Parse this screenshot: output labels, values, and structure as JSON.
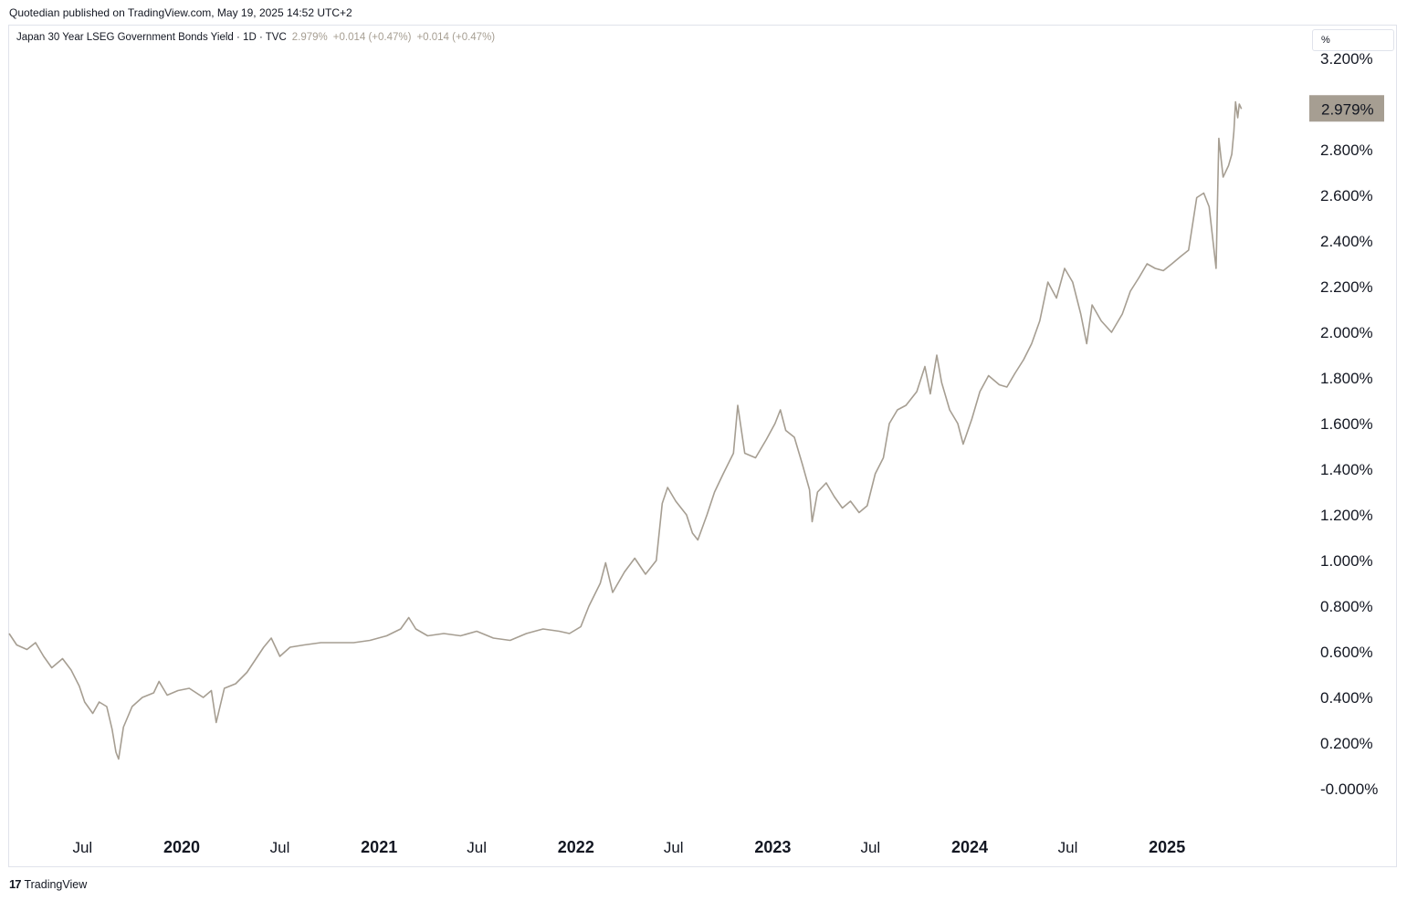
{
  "publisher_line": "Quotedian published on TradingView.com, May 19, 2025 14:52 UTC+2",
  "header": {
    "title": "Japan 30 Year LSEG Government Bonds Yield · 1D · TVC",
    "last": "2.979%",
    "change1": "+0.014 (+0.47%)",
    "change2": "+0.014 (+0.47%)"
  },
  "unit_selector": "%",
  "footer": {
    "logo_glyph": "17",
    "brand": "TradingView"
  },
  "colors": {
    "line": "#a69e92",
    "price_tag_bg": "#a69e92",
    "text": "#131722",
    "border": "#e0e3eb"
  },
  "chart_data": {
    "type": "line",
    "title": "Japan 30 Year LSEG Government Bonds Yield · 1D · TVC",
    "xlabel": "",
    "ylabel": "",
    "ylim": [
      0,
      3.2
    ],
    "y_ticks": [
      "3.200%",
      "2.800%",
      "2.600%",
      "2.400%",
      "2.200%",
      "2.000%",
      "1.800%",
      "1.600%",
      "1.400%",
      "1.200%",
      "1.000%",
      "0.800%",
      "0.600%",
      "0.400%",
      "0.200%",
      "-0.000%"
    ],
    "y_tick_values": [
      3.2,
      2.8,
      2.6,
      2.4,
      2.2,
      2.0,
      1.8,
      1.6,
      1.4,
      1.2,
      1.0,
      0.8,
      0.6,
      0.4,
      0.2,
      0.0
    ],
    "x_ticks": [
      {
        "label": "Jul",
        "date": "2019-07-01",
        "bold": false
      },
      {
        "label": "2020",
        "date": "2020-01-01",
        "bold": true
      },
      {
        "label": "Jul",
        "date": "2020-07-01",
        "bold": false
      },
      {
        "label": "2021",
        "date": "2021-01-01",
        "bold": true
      },
      {
        "label": "Jul",
        "date": "2021-07-01",
        "bold": false
      },
      {
        "label": "2022",
        "date": "2022-01-01",
        "bold": true
      },
      {
        "label": "Jul",
        "date": "2022-07-01",
        "bold": false
      },
      {
        "label": "2023",
        "date": "2023-01-01",
        "bold": true
      },
      {
        "label": "Jul",
        "date": "2023-07-01",
        "bold": false
      },
      {
        "label": "2024",
        "date": "2024-01-01",
        "bold": true
      },
      {
        "label": "Jul",
        "date": "2024-07-01",
        "bold": false
      },
      {
        "label": "2025",
        "date": "2025-01-01",
        "bold": true
      }
    ],
    "x_range": [
      "2019-02-15",
      "2025-09-15"
    ],
    "last_value": 2.979,
    "last_value_label": "2.979%",
    "series": [
      {
        "points": [
          [
            "2019-02-15",
            0.68
          ],
          [
            "2019-03-01",
            0.63
          ],
          [
            "2019-03-20",
            0.61
          ],
          [
            "2019-04-05",
            0.64
          ],
          [
            "2019-04-20",
            0.58
          ],
          [
            "2019-05-05",
            0.53
          ],
          [
            "2019-05-25",
            0.57
          ],
          [
            "2019-06-10",
            0.52
          ],
          [
            "2019-06-25",
            0.45
          ],
          [
            "2019-07-05",
            0.38
          ],
          [
            "2019-07-20",
            0.33
          ],
          [
            "2019-08-01",
            0.38
          ],
          [
            "2019-08-15",
            0.36
          ],
          [
            "2019-08-25",
            0.26
          ],
          [
            "2019-09-01",
            0.16
          ],
          [
            "2019-09-06",
            0.13
          ],
          [
            "2019-09-15",
            0.27
          ],
          [
            "2019-10-01",
            0.36
          ],
          [
            "2019-10-20",
            0.4
          ],
          [
            "2019-11-10",
            0.42
          ],
          [
            "2019-11-20",
            0.47
          ],
          [
            "2019-12-05",
            0.41
          ],
          [
            "2019-12-25",
            0.43
          ],
          [
            "2020-01-15",
            0.44
          ],
          [
            "2020-02-10",
            0.4
          ],
          [
            "2020-02-25",
            0.43
          ],
          [
            "2020-03-05",
            0.29
          ],
          [
            "2020-03-20",
            0.44
          ],
          [
            "2020-04-10",
            0.46
          ],
          [
            "2020-05-01",
            0.51
          ],
          [
            "2020-06-01",
            0.62
          ],
          [
            "2020-06-15",
            0.66
          ],
          [
            "2020-07-01",
            0.58
          ],
          [
            "2020-07-20",
            0.62
          ],
          [
            "2020-08-15",
            0.63
          ],
          [
            "2020-09-15",
            0.64
          ],
          [
            "2020-10-15",
            0.64
          ],
          [
            "2020-11-15",
            0.64
          ],
          [
            "2020-12-15",
            0.65
          ],
          [
            "2021-01-15",
            0.67
          ],
          [
            "2021-02-10",
            0.7
          ],
          [
            "2021-02-25",
            0.75
          ],
          [
            "2021-03-10",
            0.7
          ],
          [
            "2021-04-01",
            0.67
          ],
          [
            "2021-05-01",
            0.68
          ],
          [
            "2021-06-01",
            0.67
          ],
          [
            "2021-07-01",
            0.69
          ],
          [
            "2021-08-01",
            0.66
          ],
          [
            "2021-09-01",
            0.65
          ],
          [
            "2021-10-01",
            0.68
          ],
          [
            "2021-11-01",
            0.7
          ],
          [
            "2021-12-01",
            0.69
          ],
          [
            "2021-12-20",
            0.68
          ],
          [
            "2022-01-10",
            0.71
          ],
          [
            "2022-01-25",
            0.8
          ],
          [
            "2022-02-15",
            0.9
          ],
          [
            "2022-02-25",
            0.99
          ],
          [
            "2022-03-10",
            0.86
          ],
          [
            "2022-04-01",
            0.95
          ],
          [
            "2022-04-20",
            1.01
          ],
          [
            "2022-05-10",
            0.94
          ],
          [
            "2022-05-30",
            1.0
          ],
          [
            "2022-06-10",
            1.25
          ],
          [
            "2022-06-20",
            1.32
          ],
          [
            "2022-07-05",
            1.26
          ],
          [
            "2022-07-25",
            1.2
          ],
          [
            "2022-08-05",
            1.12
          ],
          [
            "2022-08-15",
            1.09
          ],
          [
            "2022-09-01",
            1.2
          ],
          [
            "2022-09-15",
            1.3
          ],
          [
            "2022-10-01",
            1.38
          ],
          [
            "2022-10-20",
            1.47
          ],
          [
            "2022-10-28",
            1.68
          ],
          [
            "2022-11-10",
            1.47
          ],
          [
            "2022-11-30",
            1.45
          ],
          [
            "2022-12-20",
            1.53
          ],
          [
            "2023-01-05",
            1.6
          ],
          [
            "2023-01-15",
            1.66
          ],
          [
            "2023-01-25",
            1.57
          ],
          [
            "2023-02-10",
            1.54
          ],
          [
            "2023-02-25",
            1.42
          ],
          [
            "2023-03-10",
            1.31
          ],
          [
            "2023-03-15",
            1.17
          ],
          [
            "2023-03-25",
            1.3
          ],
          [
            "2023-04-10",
            1.34
          ],
          [
            "2023-04-25",
            1.28
          ],
          [
            "2023-05-10",
            1.23
          ],
          [
            "2023-05-25",
            1.26
          ],
          [
            "2023-06-10",
            1.21
          ],
          [
            "2023-06-25",
            1.24
          ],
          [
            "2023-07-10",
            1.38
          ],
          [
            "2023-07-25",
            1.45
          ],
          [
            "2023-08-05",
            1.6
          ],
          [
            "2023-08-20",
            1.66
          ],
          [
            "2023-09-05",
            1.68
          ],
          [
            "2023-09-25",
            1.74
          ],
          [
            "2023-10-10",
            1.85
          ],
          [
            "2023-10-20",
            1.73
          ],
          [
            "2023-11-01",
            1.9
          ],
          [
            "2023-11-10",
            1.78
          ],
          [
            "2023-11-25",
            1.66
          ],
          [
            "2023-12-10",
            1.6
          ],
          [
            "2023-12-20",
            1.51
          ],
          [
            "2024-01-05",
            1.62
          ],
          [
            "2024-01-20",
            1.74
          ],
          [
            "2024-02-05",
            1.81
          ],
          [
            "2024-02-25",
            1.77
          ],
          [
            "2024-03-10",
            1.76
          ],
          [
            "2024-03-25",
            1.82
          ],
          [
            "2024-04-10",
            1.88
          ],
          [
            "2024-04-25",
            1.95
          ],
          [
            "2024-05-10",
            2.05
          ],
          [
            "2024-05-25",
            2.22
          ],
          [
            "2024-06-10",
            2.15
          ],
          [
            "2024-06-25",
            2.28
          ],
          [
            "2024-07-10",
            2.22
          ],
          [
            "2024-07-25",
            2.08
          ],
          [
            "2024-08-05",
            1.95
          ],
          [
            "2024-08-15",
            2.12
          ],
          [
            "2024-09-01",
            2.05
          ],
          [
            "2024-09-20",
            2.0
          ],
          [
            "2024-10-10",
            2.08
          ],
          [
            "2024-10-25",
            2.18
          ],
          [
            "2024-11-10",
            2.24
          ],
          [
            "2024-11-25",
            2.3
          ],
          [
            "2024-12-10",
            2.28
          ],
          [
            "2024-12-25",
            2.27
          ],
          [
            "2025-01-10",
            2.3
          ],
          [
            "2025-01-25",
            2.33
          ],
          [
            "2025-02-10",
            2.36
          ],
          [
            "2025-02-25",
            2.59
          ],
          [
            "2025-03-10",
            2.61
          ],
          [
            "2025-03-20",
            2.55
          ],
          [
            "2025-04-02",
            2.28
          ],
          [
            "2025-04-07",
            2.85
          ],
          [
            "2025-04-15",
            2.68
          ],
          [
            "2025-04-25",
            2.73
          ],
          [
            "2025-05-01",
            2.78
          ],
          [
            "2025-05-05",
            2.88
          ],
          [
            "2025-05-08",
            3.01
          ],
          [
            "2025-05-12",
            2.94
          ],
          [
            "2025-05-15",
            3.0
          ],
          [
            "2025-05-19",
            2.979
          ]
        ]
      }
    ]
  }
}
